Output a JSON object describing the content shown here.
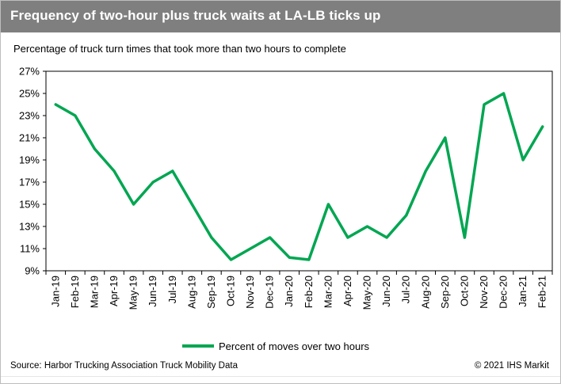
{
  "header": {
    "title": "Frequency of two-hour plus truck waits at LA-LB ticks up",
    "subtitle": "Percentage of truck turn times that took more than two hours to complete"
  },
  "footer": {
    "source": "Source: Harbor Trucking Association Truck Mobility Data",
    "copyright": "© 2021 IHS Markit"
  },
  "colors": {
    "title_bar": "#7f7f7f",
    "series": "#00a651"
  },
  "chart_data": {
    "type": "line",
    "categories": [
      "Jan-19",
      "Feb-19",
      "Mar-19",
      "Apr-19",
      "May-19",
      "Jun-19",
      "Jul-19",
      "Aug-19",
      "Sep-19",
      "Oct-19",
      "Nov-19",
      "Dec-19",
      "Jan-20",
      "Feb-20",
      "Mar-20",
      "Apr-20",
      "May-20",
      "Jun-20",
      "Jul-20",
      "Aug-20",
      "Sep-20",
      "Oct-20",
      "Nov-20",
      "Dec-20",
      "Jan-21",
      "Feb-21"
    ],
    "series": [
      {
        "name": "Percent of moves over two hours",
        "values": [
          24,
          23,
          20,
          18,
          15,
          17,
          18,
          15,
          12,
          10,
          11,
          12,
          10.2,
          10,
          15,
          12,
          13,
          12,
          14,
          18,
          21,
          12,
          24,
          25,
          19,
          22
        ]
      }
    ],
    "y_ticks": [
      "27%",
      "25%",
      "23%",
      "21%",
      "19%",
      "17%",
      "15%",
      "13%",
      "11%",
      "9%"
    ],
    "ylim": [
      9,
      27
    ],
    "grid": false,
    "legend": "bottom"
  }
}
